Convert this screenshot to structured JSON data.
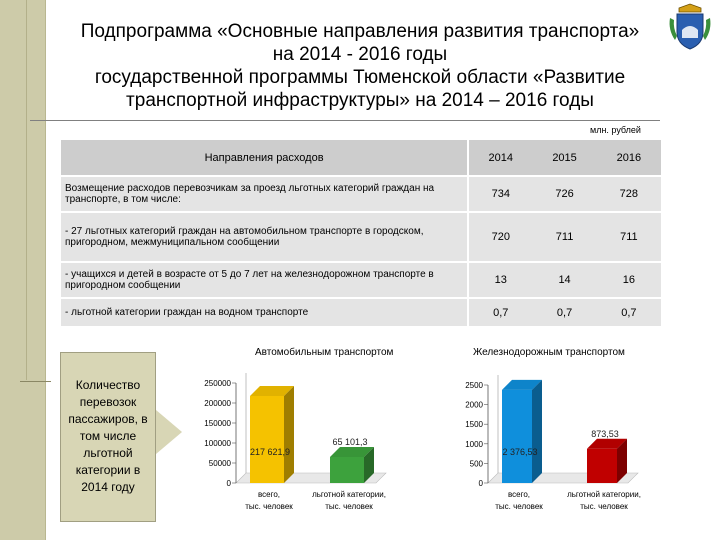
{
  "title_lines": [
    "Подпрограмма «Основные направления развития транспорта»",
    "на 2014 - 2016 годы",
    "государственной программы Тюменской области «Развитие",
    "транспортной инфраструктуры» на 2014 – 2016 годы"
  ],
  "unit": "млн. рублей",
  "table": {
    "headers": [
      "Направления расходов",
      "2014",
      "2015",
      "2016"
    ],
    "rows": [
      {
        "label": "Возмещение расходов перевозчикам за проезд льготных категорий граждан на транспорте, в том числе:",
        "values": [
          "734",
          "726",
          "728"
        ]
      },
      {
        "label": "- 27 льготных категорий граждан на автомобильном транспорте в городском, пригородном, межмуниципальном сообщении",
        "values": [
          "720",
          "711",
          "711"
        ]
      },
      {
        "label": "- учащихся и детей в возрасте от 5 до 7 лет на железнодорожном транспорте в пригородном сообщении",
        "values": [
          "13",
          "14",
          "16"
        ]
      },
      {
        "label": "- льготной категории граждан на водном транспорте",
        "values": [
          "0,7",
          "0,7",
          "0,7"
        ]
      }
    ]
  },
  "callout": "Количество перевозок пассажиров, в том числе льготной категории в 2014 году",
  "chart_data": [
    {
      "type": "bar",
      "title": "Автомобильным транспортом",
      "categories": [
        "всего, тыс. человек",
        "льготной категории, тыс. человек"
      ],
      "values": [
        217621.9,
        65101.3
      ],
      "data_labels": [
        "217 621,9",
        "65 101,3"
      ],
      "colors": [
        "#f5c200",
        "#3da23d"
      ],
      "yticks": [
        "0",
        "50000",
        "100000",
        "150000",
        "200000",
        "250000"
      ],
      "ylim": [
        0,
        250000
      ]
    },
    {
      "type": "bar",
      "title": "Железнодорожным транспортом",
      "categories": [
        "всего, тыс. человек",
        "льготной категории, тыс. человек"
      ],
      "values": [
        2376.53,
        873.53
      ],
      "data_labels": [
        "2 376,53",
        "873,53"
      ],
      "colors": [
        "#0f8fdc",
        "#c00000"
      ],
      "yticks": [
        "0",
        "500",
        "1000",
        "1500",
        "2000",
        "2500"
      ],
      "ylim": [
        0,
        2500
      ]
    }
  ]
}
